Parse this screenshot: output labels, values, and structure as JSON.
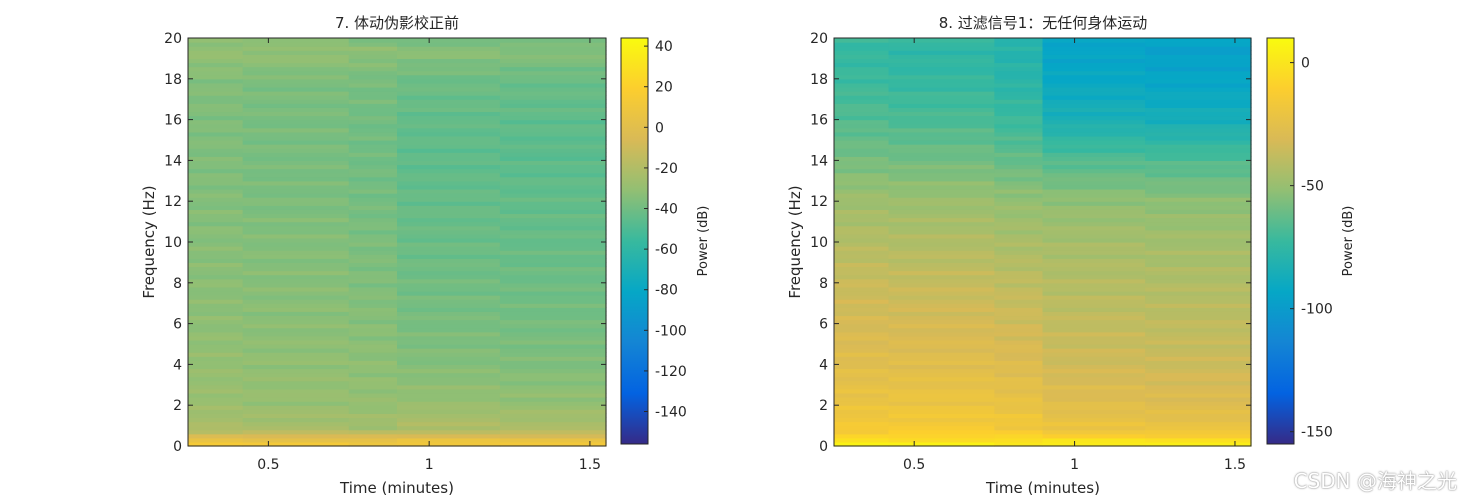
{
  "chart_data": [
    {
      "type": "heatmap",
      "title": "7. 体动伪影校正前",
      "xlabel": "Time (minutes)",
      "ylabel": "Frequency (Hz)",
      "xlim": [
        0.25,
        1.55
      ],
      "ylim": [
        0,
        20
      ],
      "xticks": [
        0.5,
        1,
        1.5
      ],
      "yticks": [
        0,
        2,
        4,
        6,
        8,
        10,
        12,
        14,
        16,
        18,
        20
      ],
      "time_segments": [
        0.25,
        0.42,
        0.75,
        0.9,
        1.22,
        1.55
      ],
      "frequency_profile_hz": [
        0,
        0.4,
        0.8,
        1.5,
        2,
        4,
        6,
        8,
        10,
        12,
        14,
        16,
        18,
        19.4,
        20
      ],
      "power_db": [
        [
          14,
          14,
          14,
          14,
          14
        ],
        [
          2,
          2,
          0,
          1,
          2
        ],
        [
          -22,
          -23,
          -25,
          -21,
          -22
        ],
        [
          -25,
          -26,
          -27,
          -24,
          -25
        ],
        [
          -28,
          -29,
          -30,
          -29,
          -30
        ],
        [
          -30,
          -31,
          -32,
          -35,
          -36
        ],
        [
          -32,
          -33,
          -34,
          -38,
          -39
        ],
        [
          -33,
          -34,
          -36,
          -40,
          -41
        ],
        [
          -34,
          -35,
          -37,
          -42,
          -43
        ],
        [
          -35,
          -37,
          -39,
          -43,
          -44
        ],
        [
          -36,
          -38,
          -40,
          -45,
          -46
        ],
        [
          -36,
          -38,
          -40,
          -44,
          -45
        ],
        [
          -35,
          -37,
          -38,
          -41,
          -42
        ],
        [
          -30,
          -30,
          -32,
          -33,
          -34
        ],
        [
          -34,
          -36,
          -38,
          -40,
          -41
        ]
      ],
      "colorbar": {
        "label": "Power (dB)",
        "range": [
          -156,
          44
        ],
        "ticks": [
          40,
          20,
          0,
          -20,
          -40,
          -60,
          -80,
          -100,
          -120,
          -140
        ]
      }
    },
    {
      "type": "heatmap",
      "title": "8. 过滤信号1：无任何身体运动",
      "xlabel": "Time (minutes)",
      "ylabel": "Frequency (Hz)",
      "xlim": [
        0.25,
        1.55
      ],
      "ylim": [
        0,
        20
      ],
      "xticks": [
        0.5,
        1,
        1.5
      ],
      "yticks": [
        0,
        2,
        4,
        6,
        8,
        10,
        12,
        14,
        16,
        18,
        20
      ],
      "time_segments": [
        0.25,
        0.42,
        0.75,
        0.9,
        1.22,
        1.55
      ],
      "frequency_profile_hz": [
        0,
        0.4,
        0.8,
        1.5,
        2,
        4,
        6,
        8,
        10,
        12,
        14,
        16,
        18,
        19.4,
        20
      ],
      "power_db": [
        [
          6,
          6,
          6,
          6,
          6
        ],
        [
          -5,
          -5,
          -6,
          -6,
          -6
        ],
        [
          -15,
          -14,
          -16,
          -20,
          -21
        ],
        [
          -18,
          -17,
          -19,
          -24,
          -25
        ],
        [
          -21,
          -20,
          -22,
          -27,
          -28
        ],
        [
          -27,
          -27,
          -29,
          -34,
          -35
        ],
        [
          -32,
          -32,
          -34,
          -38,
          -39
        ],
        [
          -36,
          -37,
          -39,
          -42,
          -43
        ],
        [
          -42,
          -43,
          -45,
          -46,
          -47
        ],
        [
          -48,
          -49,
          -51,
          -52,
          -53
        ],
        [
          -58,
          -59,
          -62,
          -66,
          -67
        ],
        [
          -66,
          -68,
          -72,
          -84,
          -86
        ],
        [
          -72,
          -74,
          -78,
          -92,
          -94
        ],
        [
          -74,
          -76,
          -80,
          -95,
          -97
        ],
        [
          -72,
          -74,
          -78,
          -92,
          -94
        ]
      ],
      "colorbar": {
        "label": "Power (dB)",
        "range": [
          -155,
          10
        ],
        "ticks": [
          0,
          -50,
          -100,
          -150
        ]
      }
    }
  ],
  "watermark": "CSDN @海神之光"
}
